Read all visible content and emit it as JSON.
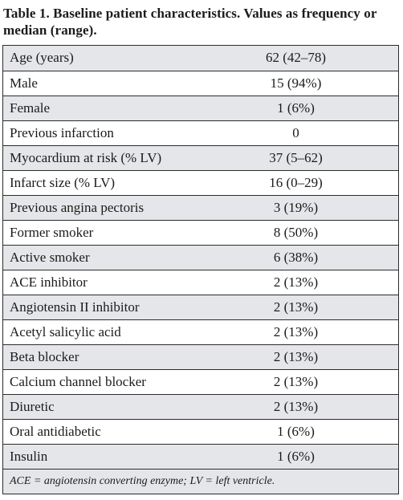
{
  "caption": "Table 1. Baseline patient characteristics. Values as frequency or median (range).",
  "rows": [
    {
      "label": "Age (years)",
      "value": "62 (42–78)"
    },
    {
      "label": "Male",
      "value": "15 (94%)"
    },
    {
      "label": "Female",
      "value": "1 (6%)"
    },
    {
      "label": "Previous infarction",
      "value": "0"
    },
    {
      "label": "Myocardium at risk (% LV)",
      "value": "37 (5–62)"
    },
    {
      "label": "Infarct size (% LV)",
      "value": "16 (0–29)"
    },
    {
      "label": "Previous angina pectoris",
      "value": "3 (19%)"
    },
    {
      "label": "Former smoker",
      "value": "8 (50%)"
    },
    {
      "label": "Active smoker",
      "value": "6 (38%)"
    },
    {
      "label": "ACE inhibitor",
      "value": "2 (13%)"
    },
    {
      "label": "Angiotensin II inhibitor",
      "value": "2 (13%)"
    },
    {
      "label": "Acetyl salicylic acid",
      "value": "2 (13%)"
    },
    {
      "label": "Beta blocker",
      "value": "2 (13%)"
    },
    {
      "label": "Calcium channel blocker",
      "value": "2 (13%)"
    },
    {
      "label": "Diuretic",
      "value": "2 (13%)"
    },
    {
      "label": "Oral antidiabetic",
      "value": "1 (6%)"
    },
    {
      "label": "Insulin",
      "value": "1 (6%)"
    }
  ],
  "footnote": "ACE = angiotensin converting enzyme; LV = left ventricle.",
  "colors": {
    "shaded_row": "#e4e6ea",
    "border": "#2c2c2c",
    "text": "#1b1b1b"
  }
}
